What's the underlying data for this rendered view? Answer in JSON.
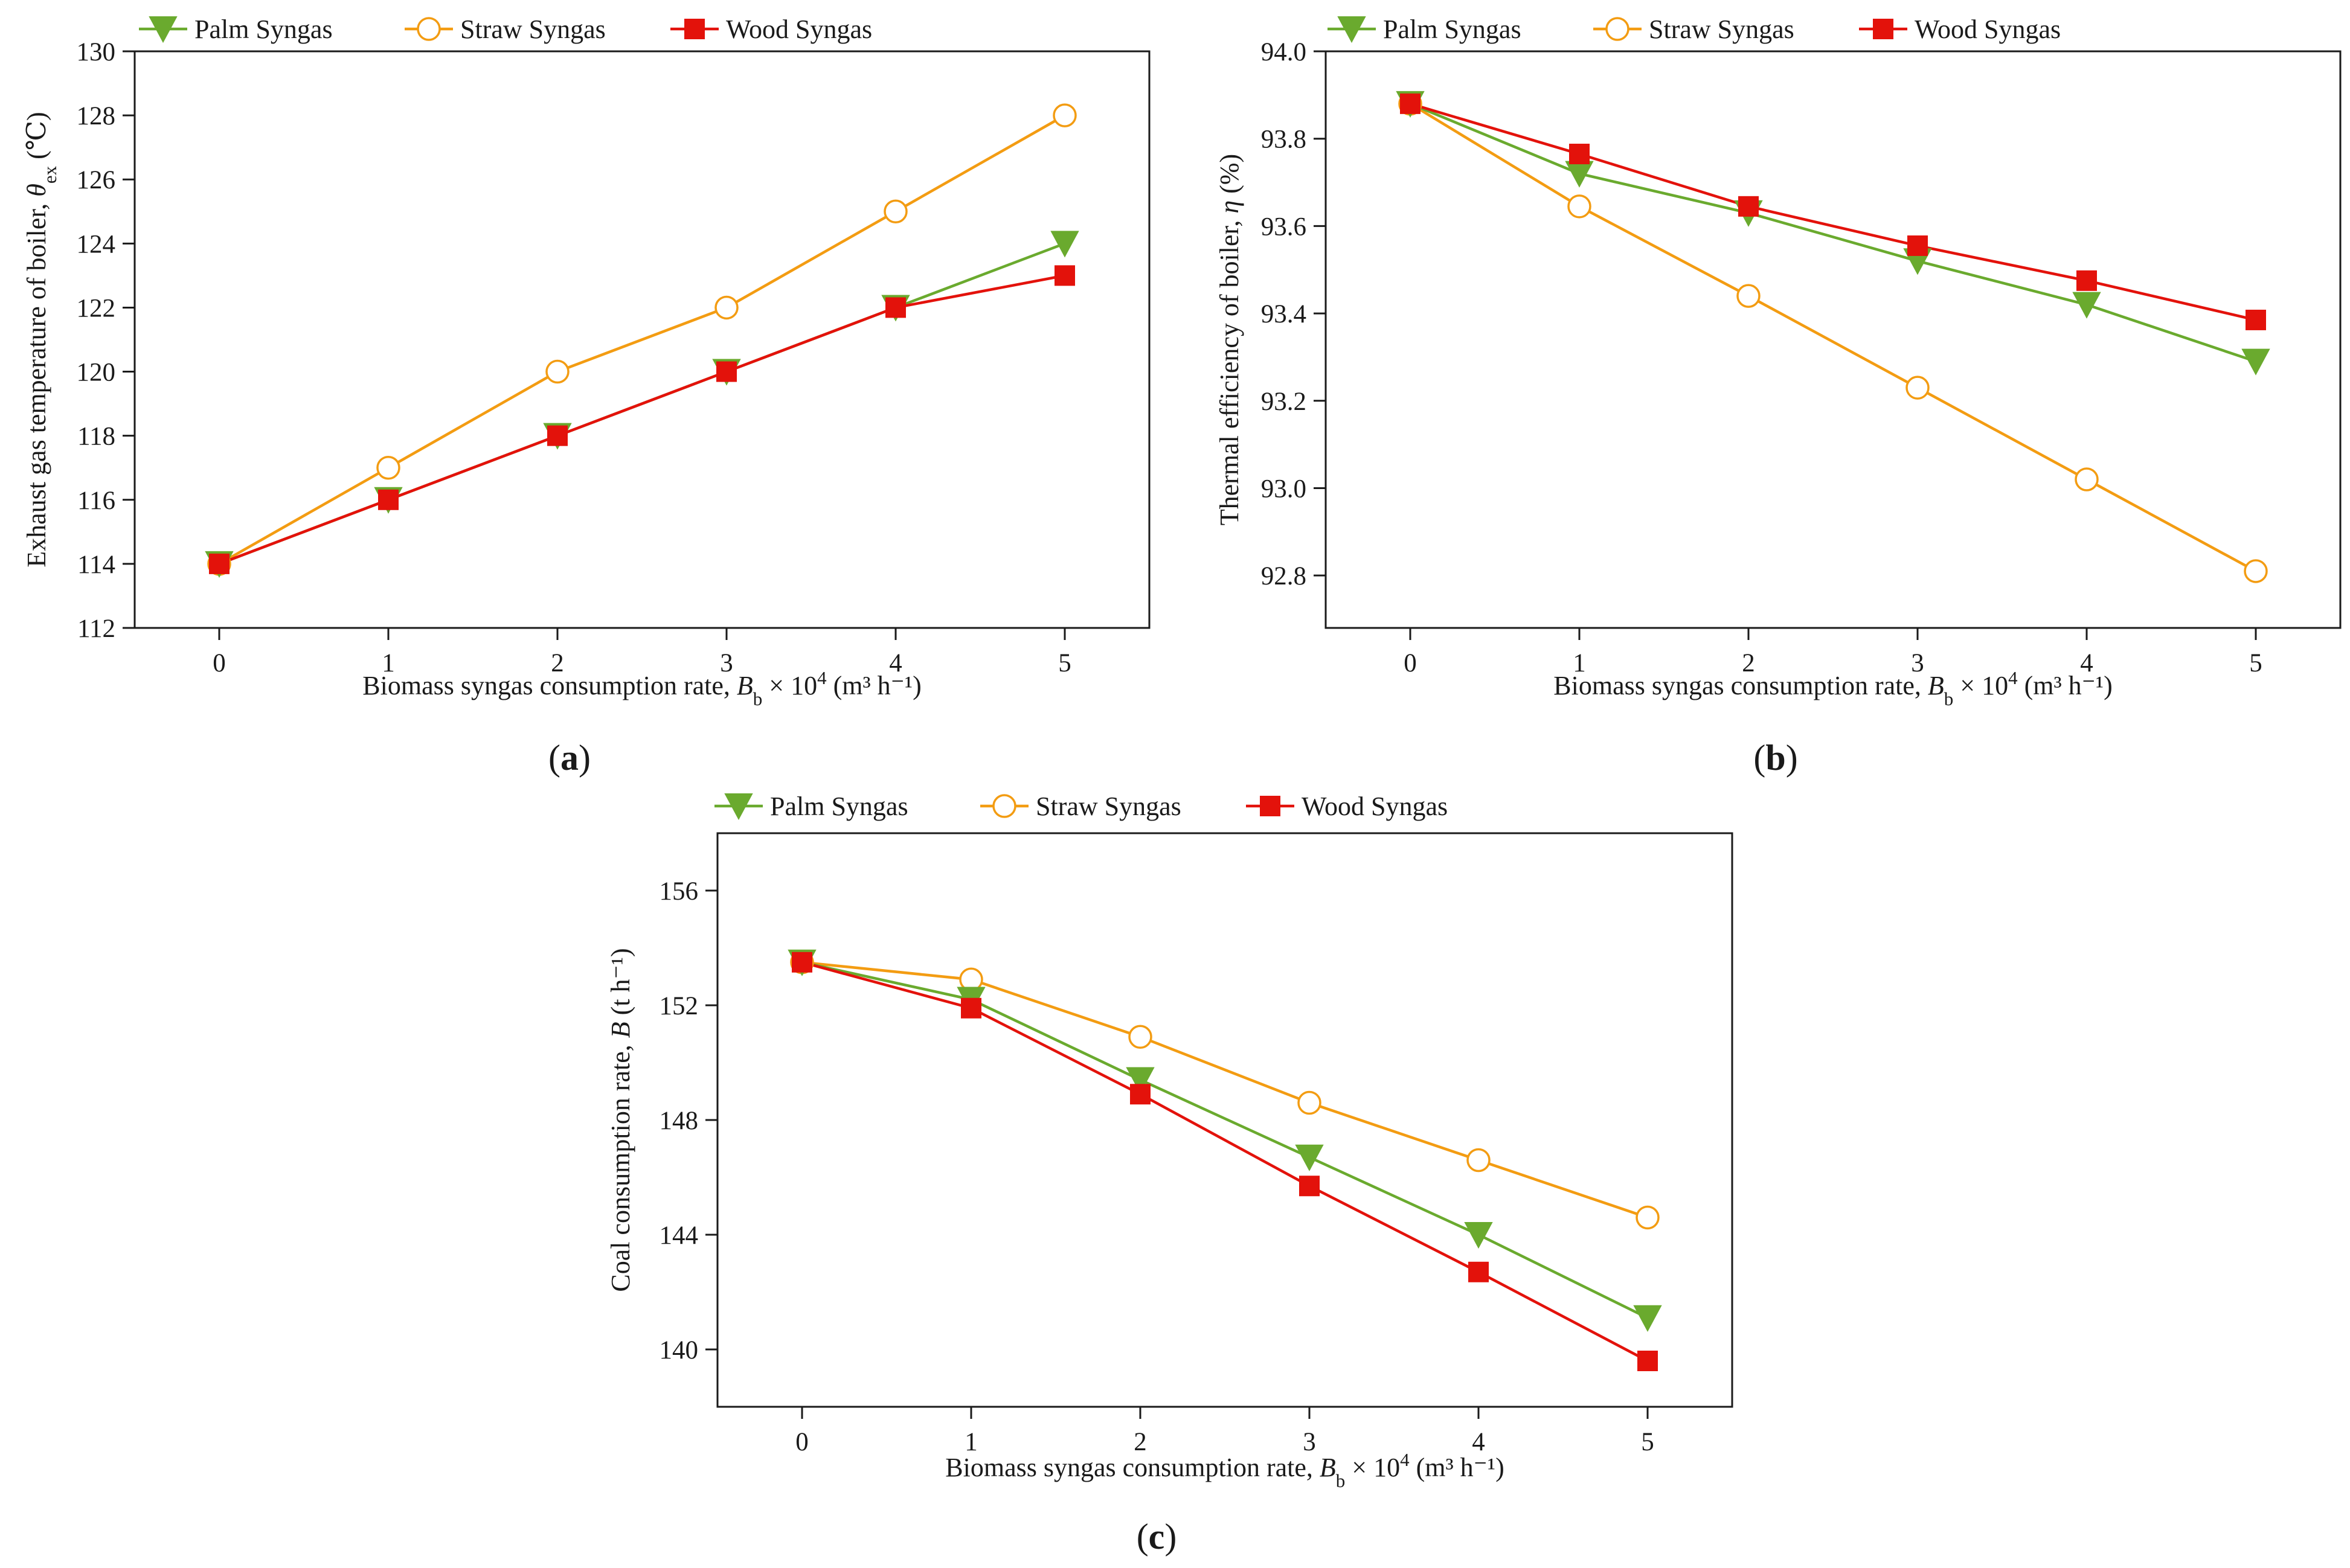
{
  "chart_data": [
    {
      "panel": "(a)",
      "panel_letter": "a",
      "type": "line",
      "x": [
        0,
        1,
        2,
        3,
        4,
        5
      ],
      "xlim": [
        -0.5,
        5.5
      ],
      "ylim": [
        112,
        130
      ],
      "xticks": [
        0,
        1,
        2,
        3,
        4,
        5
      ],
      "yticks": [
        112,
        114,
        116,
        118,
        120,
        122,
        124,
        126,
        128,
        130
      ],
      "ytick_labels": [
        "112",
        "114",
        "116",
        "118",
        "120",
        "122",
        "124",
        "126",
        "128",
        "130"
      ],
      "ylabel": {
        "main": "Exhaust gas temperature of boiler, ",
        "symbol": "θ",
        "sub": "ex",
        "unit": " (℃)"
      },
      "series": [
        {
          "name": "Palm Syngas",
          "values": [
            114,
            116,
            118,
            120,
            122,
            124
          ]
        },
        {
          "name": "Straw Syngas",
          "values": [
            114,
            117,
            120,
            122,
            125,
            128
          ]
        },
        {
          "name": "Wood Syngas",
          "values": [
            114,
            116,
            118,
            120,
            122,
            123
          ]
        }
      ]
    },
    {
      "panel": "(b)",
      "panel_letter": "b",
      "type": "line",
      "x": [
        0,
        1,
        2,
        3,
        4,
        5
      ],
      "xlim": [
        -0.5,
        5.5
      ],
      "ylim": [
        92.68,
        94.0
      ],
      "xticks": [
        0,
        1,
        2,
        3,
        4,
        5
      ],
      "yticks": [
        92.8,
        93.0,
        93.2,
        93.4,
        93.6,
        93.8,
        94.0
      ],
      "ytick_labels": [
        "92.8",
        "93.0",
        "93.2",
        "93.4",
        "93.6",
        "93.8",
        "94.0"
      ],
      "ylabel": {
        "main": "Thermal efficiency of boiler, ",
        "symbol": "η",
        "sub": "",
        "unit": " (%)"
      },
      "series": [
        {
          "name": "Palm Syngas",
          "values": [
            93.88,
            93.72,
            93.63,
            93.52,
            93.42,
            93.29
          ]
        },
        {
          "name": "Straw Syngas",
          "values": [
            93.88,
            93.645,
            93.44,
            93.23,
            93.02,
            92.81
          ]
        },
        {
          "name": "Wood Syngas",
          "values": [
            93.88,
            93.765,
            93.645,
            93.555,
            93.475,
            93.385
          ]
        }
      ]
    },
    {
      "panel": "(c)",
      "panel_letter": "c",
      "type": "line",
      "x": [
        0,
        1,
        2,
        3,
        4,
        5
      ],
      "xlim": [
        -0.5,
        5.5
      ],
      "ylim": [
        138,
        158
      ],
      "xticks": [
        0,
        1,
        2,
        3,
        4,
        5
      ],
      "yticks": [
        140,
        144,
        148,
        152,
        156
      ],
      "ytick_labels": [
        "140",
        "144",
        "148",
        "152",
        "156"
      ],
      "ylabel": {
        "main": "Coal consumption rate, ",
        "symbol": "B",
        "sub": "",
        "unit": " (t h⁻¹)"
      },
      "series": [
        {
          "name": "Palm Syngas",
          "values": [
            153.5,
            152.2,
            149.4,
            146.7,
            144.0,
            141.1
          ]
        },
        {
          "name": "Straw Syngas",
          "values": [
            153.5,
            152.9,
            150.9,
            148.6,
            146.6,
            144.6
          ]
        },
        {
          "name": "Wood Syngas",
          "values": [
            153.5,
            151.9,
            148.9,
            145.7,
            142.7,
            139.6
          ]
        }
      ]
    }
  ],
  "xlabel": {
    "main": "Biomass syngas consumption rate, ",
    "symbol": "B",
    "sub": "b",
    "times": " × 10",
    "sup": "4",
    "unit": " (m³ h⁻¹)"
  },
  "legend_labels": [
    "Palm Syngas",
    "Straw Syngas",
    "Wood Syngas"
  ],
  "colors": {
    "palm": "#6aaa2e",
    "straw": "#f39c12",
    "wood": "#e3120b",
    "axis": "#1a1a1a"
  }
}
